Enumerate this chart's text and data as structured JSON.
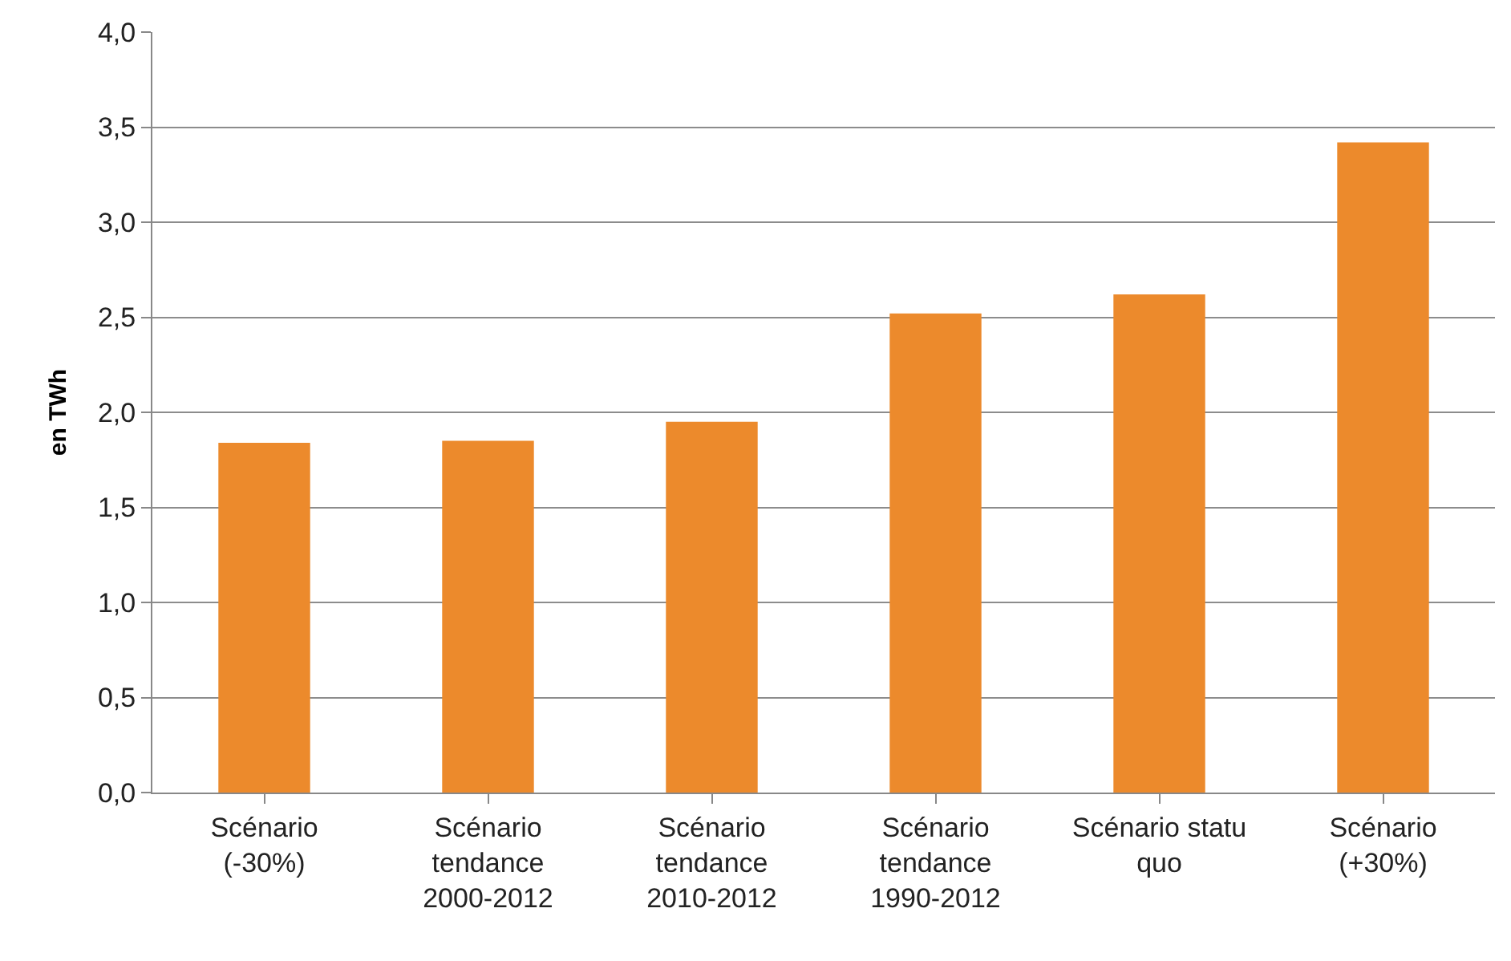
{
  "chart_data": {
    "type": "bar",
    "ylabel": "en TWh",
    "categories": [
      "Scénario (-30%)",
      "Scénario tendance 2000-2012",
      "Scénario tendance 2010-2012",
      "Scénario tendance 1990-2012",
      "Scénario statu quo",
      "Scénario (+30%)"
    ],
    "values": [
      1.84,
      1.85,
      1.95,
      2.52,
      2.62,
      3.42
    ],
    "color": "#ec8a2c",
    "ylim": [
      0,
      4
    ],
    "yticks": [
      {
        "value": 0,
        "label": "0,0"
      },
      {
        "value": 0.5,
        "label": "0,5"
      },
      {
        "value": 1,
        "label": "1,0"
      },
      {
        "value": 1.5,
        "label": "1,5"
      },
      {
        "value": 2,
        "label": "2,0"
      },
      {
        "value": 2.5,
        "label": "2,5"
      },
      {
        "value": 3,
        "label": "3,0"
      },
      {
        "value": 3.5,
        "label": "3,5"
      },
      {
        "value": 4,
        "label": "4,0"
      }
    ],
    "grid": "y"
  }
}
